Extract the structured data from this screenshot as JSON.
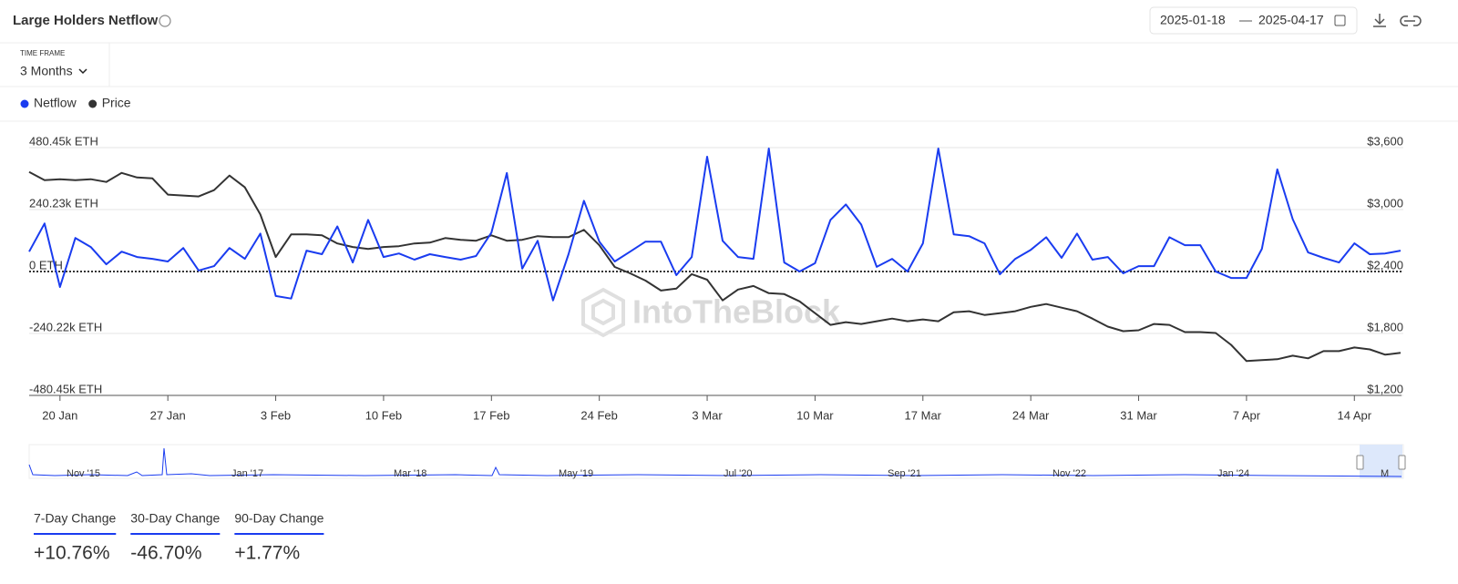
{
  "chart_data": {
    "type": "line",
    "title": "Large Holders Netflow",
    "categories": [
      null,
      null,
      "20 Jan",
      null,
      null,
      null,
      null,
      null,
      null,
      "27 Jan",
      null,
      null,
      null,
      null,
      null,
      null,
      "3 Feb",
      null,
      null,
      null,
      null,
      null,
      null,
      "10 Feb",
      null,
      null,
      null,
      null,
      null,
      null,
      "17 Feb",
      null,
      null,
      null,
      null,
      null,
      null,
      "24 Feb",
      null,
      null,
      null,
      null,
      null,
      null,
      "3 Mar",
      null,
      null,
      null,
      null,
      null,
      null,
      "10 Mar",
      null,
      null,
      null,
      null,
      null,
      null,
      "17 Mar",
      null,
      null,
      null,
      null,
      null,
      null,
      "24 Mar",
      null,
      null,
      null,
      null,
      null,
      null,
      "31 Mar",
      null,
      null,
      null,
      null,
      null,
      null,
      "7 Apr",
      null,
      null,
      null,
      null,
      null,
      null,
      "14 Apr",
      null,
      null,
      null
    ],
    "series": [
      {
        "name": "Netflow",
        "color": "#1a3cf0",
        "values": [
          77000,
          186000,
          -60000,
          130000,
          95000,
          28000,
          77000,
          56000,
          49000,
          39000,
          91000,
          4000,
          21000,
          91000,
          49000,
          147000,
          -95000,
          -105000,
          81000,
          67000,
          175000,
          35000,
          200000,
          56000,
          70000,
          46000,
          67000,
          56000,
          46000,
          60000,
          151000,
          382000,
          11000,
          119000,
          -112000,
          67000,
          274000,
          116000,
          39000,
          77000,
          116000,
          116000,
          -14000,
          56000,
          445000,
          119000,
          56000,
          49000,
          477000,
          35000,
          0,
          32000,
          200000,
          260000,
          182000,
          18000,
          49000,
          0,
          109000,
          477000,
          144000,
          137000,
          109000,
          -11000,
          49000,
          84000,
          133000,
          53000,
          147000,
          46000,
          56000,
          -7000,
          21000,
          21000,
          133000,
          102000,
          102000,
          0,
          -25000,
          -25000,
          88000,
          396000,
          203000,
          74000,
          53000,
          35000,
          109000,
          67000,
          70000,
          81000
        ]
      },
      {
        "name": "Price",
        "color": "#333333",
        "axis": "y2",
        "values": [
          3364,
          3285,
          3294,
          3285,
          3294,
          3267,
          3355,
          3311,
          3302,
          3145,
          3136,
          3127,
          3188,
          3329,
          3215,
          2952,
          2540,
          2759,
          2759,
          2750,
          2672,
          2637,
          2619,
          2637,
          2645,
          2672,
          2680,
          2724,
          2707,
          2698,
          2750,
          2698,
          2707,
          2742,
          2733,
          2733,
          2803,
          2654,
          2444,
          2382,
          2312,
          2216,
          2234,
          2374,
          2321,
          2120,
          2225,
          2260,
          2190,
          2181,
          2111,
          1997,
          1883,
          1909,
          1892,
          1918,
          1944,
          1918,
          1936,
          1918,
          2006,
          2015,
          1979,
          1997,
          2015,
          2058,
          2085,
          2050,
          2015,
          1944,
          1866,
          1822,
          1831,
          1892,
          1883,
          1813,
          1813,
          1804,
          1690,
          1533,
          1542,
          1550,
          1585,
          1559,
          1629,
          1629,
          1664,
          1646,
          1594,
          1612
        ]
      }
    ],
    "ylim": [
      -480450,
      480450
    ],
    "yticks": [
      {
        "value": 480450,
        "label": "480.45k ETH"
      },
      {
        "value": 240230,
        "label": "240.23k ETH"
      },
      {
        "value": 0,
        "label": "0 ETH"
      },
      {
        "value": -240220,
        "label": "-240.22k ETH"
      },
      {
        "value": -480450,
        "label": "-480.45k ETH"
      }
    ],
    "y2lim": [
      1200,
      3600
    ],
    "y2ticks": [
      {
        "value": 3600,
        "label": "$3,600"
      },
      {
        "value": 3000,
        "label": "$3,000"
      },
      {
        "value": 2400,
        "label": "$2,400"
      },
      {
        "value": 1800,
        "label": "$1,800"
      },
      {
        "value": 1200,
        "label": "$1,200"
      }
    ],
    "grid": true,
    "legend": "top-left"
  },
  "date_range": {
    "start": "2025-01-18",
    "end": "2025-04-17"
  },
  "time_frame": {
    "label": "TIME FRAME",
    "value": "3 Months"
  },
  "watermark": "IntoTheBlock",
  "navigator": {
    "labels": [
      "Nov '15",
      "Jan '17",
      "Mar '18",
      "May '19",
      "Jul '20",
      "Sep '21",
      "Nov '22",
      "Jan '24",
      "M"
    ]
  },
  "changes": [
    {
      "label": "7-Day Change",
      "value": "+10.76%"
    },
    {
      "label": "30-Day Change",
      "value": "-46.70%"
    },
    {
      "label": "90-Day Change",
      "value": "+1.77%"
    }
  ]
}
